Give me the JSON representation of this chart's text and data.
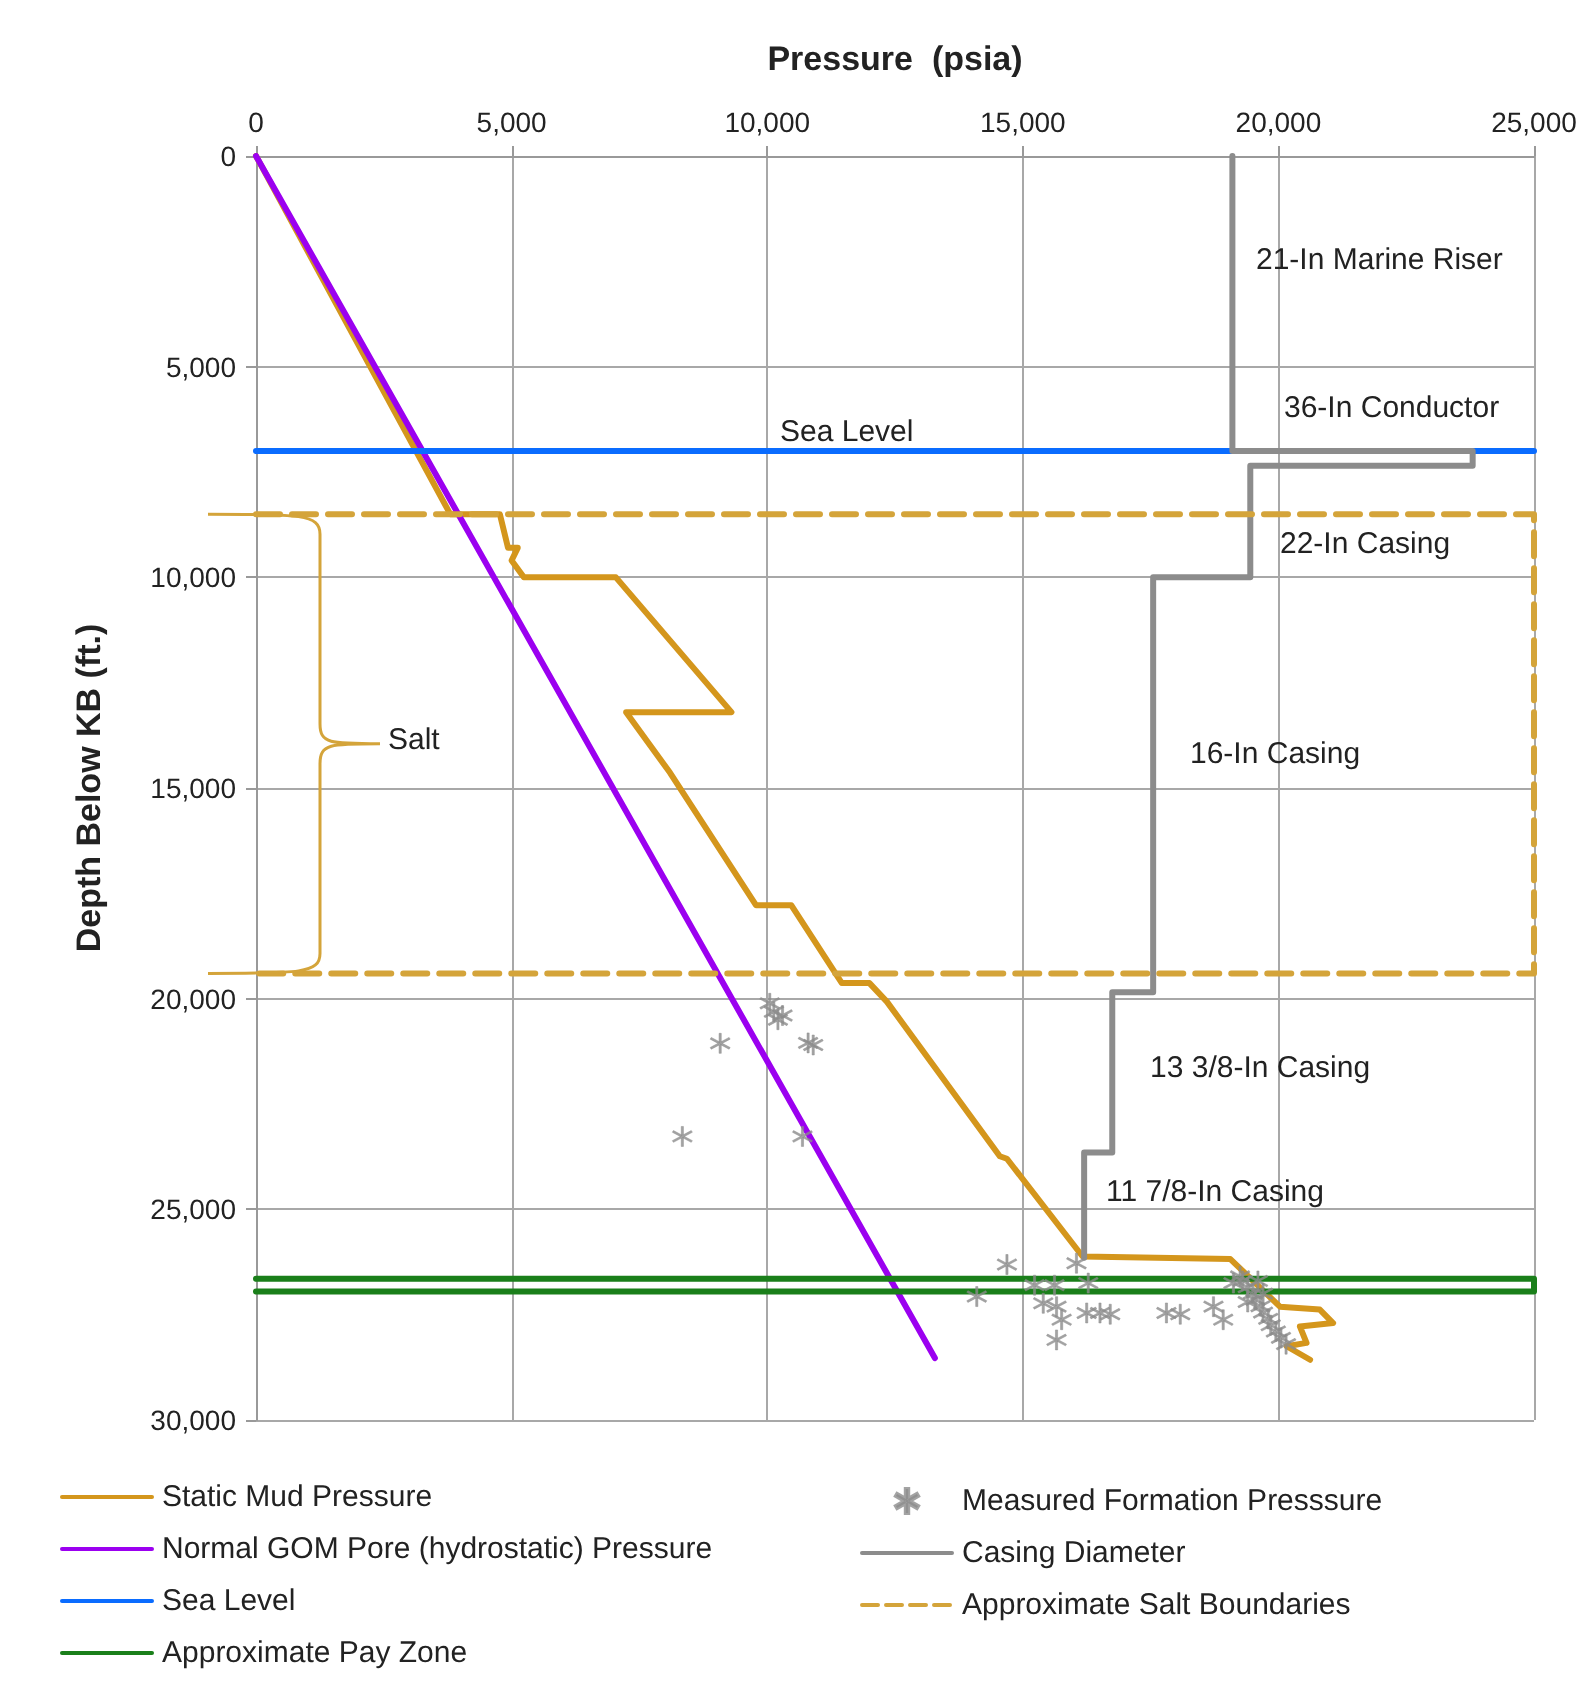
{
  "chart_data": {
    "type": "line",
    "xlabel": "Pressure  (psia)",
    "ylabel": "Depth Below KB (ft.)",
    "xlim": [
      0,
      25000
    ],
    "xticks": [
      0,
      {
        "value": 5000,
        "label": "5,000"
      },
      {
        "value": 10000,
        "label": "10,000"
      },
      {
        "value": 15000,
        "label": "15,000"
      },
      {
        "value": 20000,
        "label": "20,000"
      },
      {
        "value": 25000,
        "label": "25,000"
      }
    ],
    "ylim": [
      30000,
      0
    ],
    "yticks": [
      0,
      {
        "value": 5000,
        "label": "5,000"
      },
      {
        "value": 10000,
        "label": "10,000"
      },
      {
        "value": 15000,
        "label": "15,000"
      },
      {
        "value": 20000,
        "label": "20,000"
      },
      {
        "value": 25000,
        "label": "25,000"
      },
      {
        "value": 30000,
        "label": "30,000"
      }
    ],
    "grid": true,
    "legend": "bottom",
    "marker": "none",
    "line_style": "solid",
    "series": [
      {
        "name": "Static Mud Pressure",
        "color": "#d4961c",
        "x": [
          0,
          3800,
          4770,
          4930,
          5120,
          5000,
          5240,
          7040,
          9300,
          7240,
          8100,
          9780,
          10470,
          11460,
          12000,
          12340,
          14550,
          14690,
          16170,
          19060,
          20030,
          20810,
          21070,
          20420,
          20550,
          20160,
          20620
        ],
        "values": [
          0,
          8500,
          8500,
          9300,
          9300,
          9600,
          10000,
          10000,
          13200,
          13200,
          14640,
          17780,
          17780,
          19630,
          19630,
          20070,
          23740,
          23800,
          26120,
          26180,
          27310,
          27380,
          27700,
          27780,
          28170,
          28250,
          28570
        ]
      },
      {
        "name": "Normal GOM Pore (hydrostatic) Pressure",
        "color": "#9b00f0",
        "x": [
          0,
          13280
        ],
        "values": [
          0,
          28530
        ]
      },
      {
        "name": "Sea Level",
        "color": "#0a6cff",
        "x": [
          0,
          25000
        ],
        "values": [
          7000,
          7000
        ]
      },
      {
        "name": "Approximate Pay Zone",
        "color": "#1a7f1a",
        "x": [
          0,
          25000,
          25000,
          0
        ],
        "values": [
          26650,
          26650,
          26950,
          26950
        ]
      },
      {
        "name": "Measured Formation Presssure",
        "type": "scatter",
        "marker": "cross",
        "color": "#8c8c8c",
        "x": [
          10050,
          10130,
          10210,
          10300,
          9080,
          10900,
          10800,
          8340,
          10690,
          14100,
          14690,
          15230,
          15620,
          15400,
          15660,
          15760,
          15660,
          16050,
          16280,
          16250,
          16510,
          16710,
          17810,
          18080,
          18730,
          18920,
          19120,
          19250,
          19300,
          19400,
          19500,
          19550,
          19650,
          19700,
          19800,
          19850,
          19950,
          20050,
          20150,
          19600,
          19700,
          19400
        ],
        "values": [
          20110,
          20310,
          20500,
          20400,
          21060,
          21100,
          21050,
          23270,
          23270,
          27070,
          26310,
          26800,
          26800,
          27230,
          27310,
          27620,
          28100,
          26280,
          26750,
          27460,
          27460,
          27490,
          27460,
          27490,
          27310,
          27620,
          26750,
          26590,
          26700,
          26850,
          27000,
          27150,
          27300,
          27450,
          27600,
          27750,
          27900,
          28050,
          28200,
          26700,
          27000,
          27200
        ]
      },
      {
        "name": "Casing Diameter",
        "color": "#8c8c8c",
        "x": [
          19100,
          19100,
          23800,
          23800,
          19450,
          19450,
          17550,
          17550,
          16750,
          16750,
          16200,
          16200
        ],
        "values": [
          0,
          7000,
          7000,
          7350,
          7350,
          10000,
          10000,
          19850,
          19850,
          23650,
          23650,
          26150
        ]
      },
      {
        "name": "Approximate Salt Boundaries",
        "color": "#d4a43a",
        "line_style": "dashed",
        "x": [
          0,
          25000,
          25000,
          0
        ],
        "values": [
          8500,
          8500,
          19400,
          19400
        ]
      }
    ],
    "annotations": [
      "21-In Marine Riser",
      "36-In Conductor",
      "Sea Level",
      "22-In Casing",
      "16-In Casing",
      "13 3/8-In Casing",
      "11 7/8-In Casing",
      "Salt"
    ]
  }
}
